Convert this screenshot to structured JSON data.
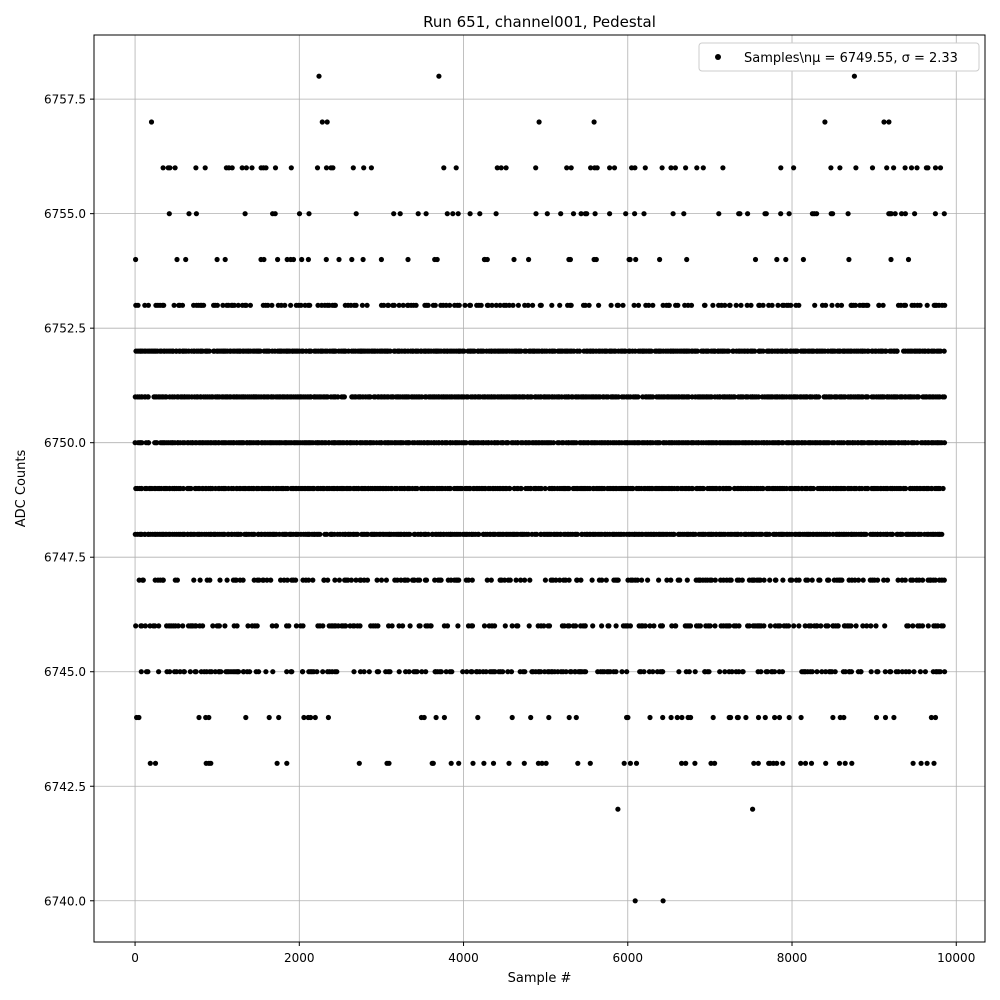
{
  "chart_data": {
    "type": "scatter",
    "title": "Run 651, channel001, Pedestal",
    "xlabel": "Sample #",
    "ylabel": "ADC Counts",
    "xlim": [
      -500,
      10350
    ],
    "ylim": [
      6739.1,
      6758.9
    ],
    "xticks": [
      0,
      2000,
      4000,
      6000,
      8000,
      10000
    ],
    "xtick_labels": [
      "0",
      "2000",
      "4000",
      "6000",
      "8000",
      "10000"
    ],
    "yticks": [
      6740.0,
      6742.5,
      6745.0,
      6747.5,
      6750.0,
      6752.5,
      6755.0,
      6757.5
    ],
    "ytick_labels": [
      "6740.0",
      "6742.5",
      "6745.0",
      "6747.5",
      "6750.0",
      "6752.5",
      "6755.0",
      "6757.5"
    ],
    "grid": true,
    "legend_position": "top-right",
    "legend_label": "Samples\\nμ = 6749.55, σ = 2.33",
    "marker_color": "#000000",
    "series": [
      {
        "name": "Samples\\nμ = 6749.55, σ = 2.33",
        "x_range": [
          0,
          9850
        ],
        "levels": [
          {
            "y": 6752,
            "density": "dense"
          },
          {
            "y": 6751,
            "density": "dense"
          },
          {
            "y": 6750,
            "density": "dense"
          },
          {
            "y": 6749,
            "density": "dense"
          },
          {
            "y": 6748,
            "density": "dense"
          },
          {
            "y": 6753,
            "density": "medium"
          },
          {
            "y": 6747,
            "density": "medium"
          },
          {
            "y": 6746,
            "density": "medium"
          },
          {
            "y": 6745,
            "density": "medium"
          },
          {
            "y": 6754,
            "density": "sparse"
          },
          {
            "y": 6744,
            "density": "sparse"
          },
          {
            "y": 6755,
            "density": "sparse"
          },
          {
            "y": 6743,
            "density": "sparse"
          },
          {
            "y": 6756,
            "density": "sparse"
          }
        ],
        "points": [
          {
            "x": 2240,
            "y": 6758
          },
          {
            "x": 3700,
            "y": 6758
          },
          {
            "x": 8760,
            "y": 6758
          },
          {
            "x": 200,
            "y": 6757
          },
          {
            "x": 2280,
            "y": 6757
          },
          {
            "x": 2340,
            "y": 6757
          },
          {
            "x": 4920,
            "y": 6757
          },
          {
            "x": 5590,
            "y": 6757
          },
          {
            "x": 8400,
            "y": 6757
          },
          {
            "x": 9120,
            "y": 6757
          },
          {
            "x": 9180,
            "y": 6757
          },
          {
            "x": 5880,
            "y": 6742
          },
          {
            "x": 7520,
            "y": 6742
          },
          {
            "x": 6090,
            "y": 6740
          },
          {
            "x": 6430,
            "y": 6740
          }
        ]
      }
    ]
  }
}
